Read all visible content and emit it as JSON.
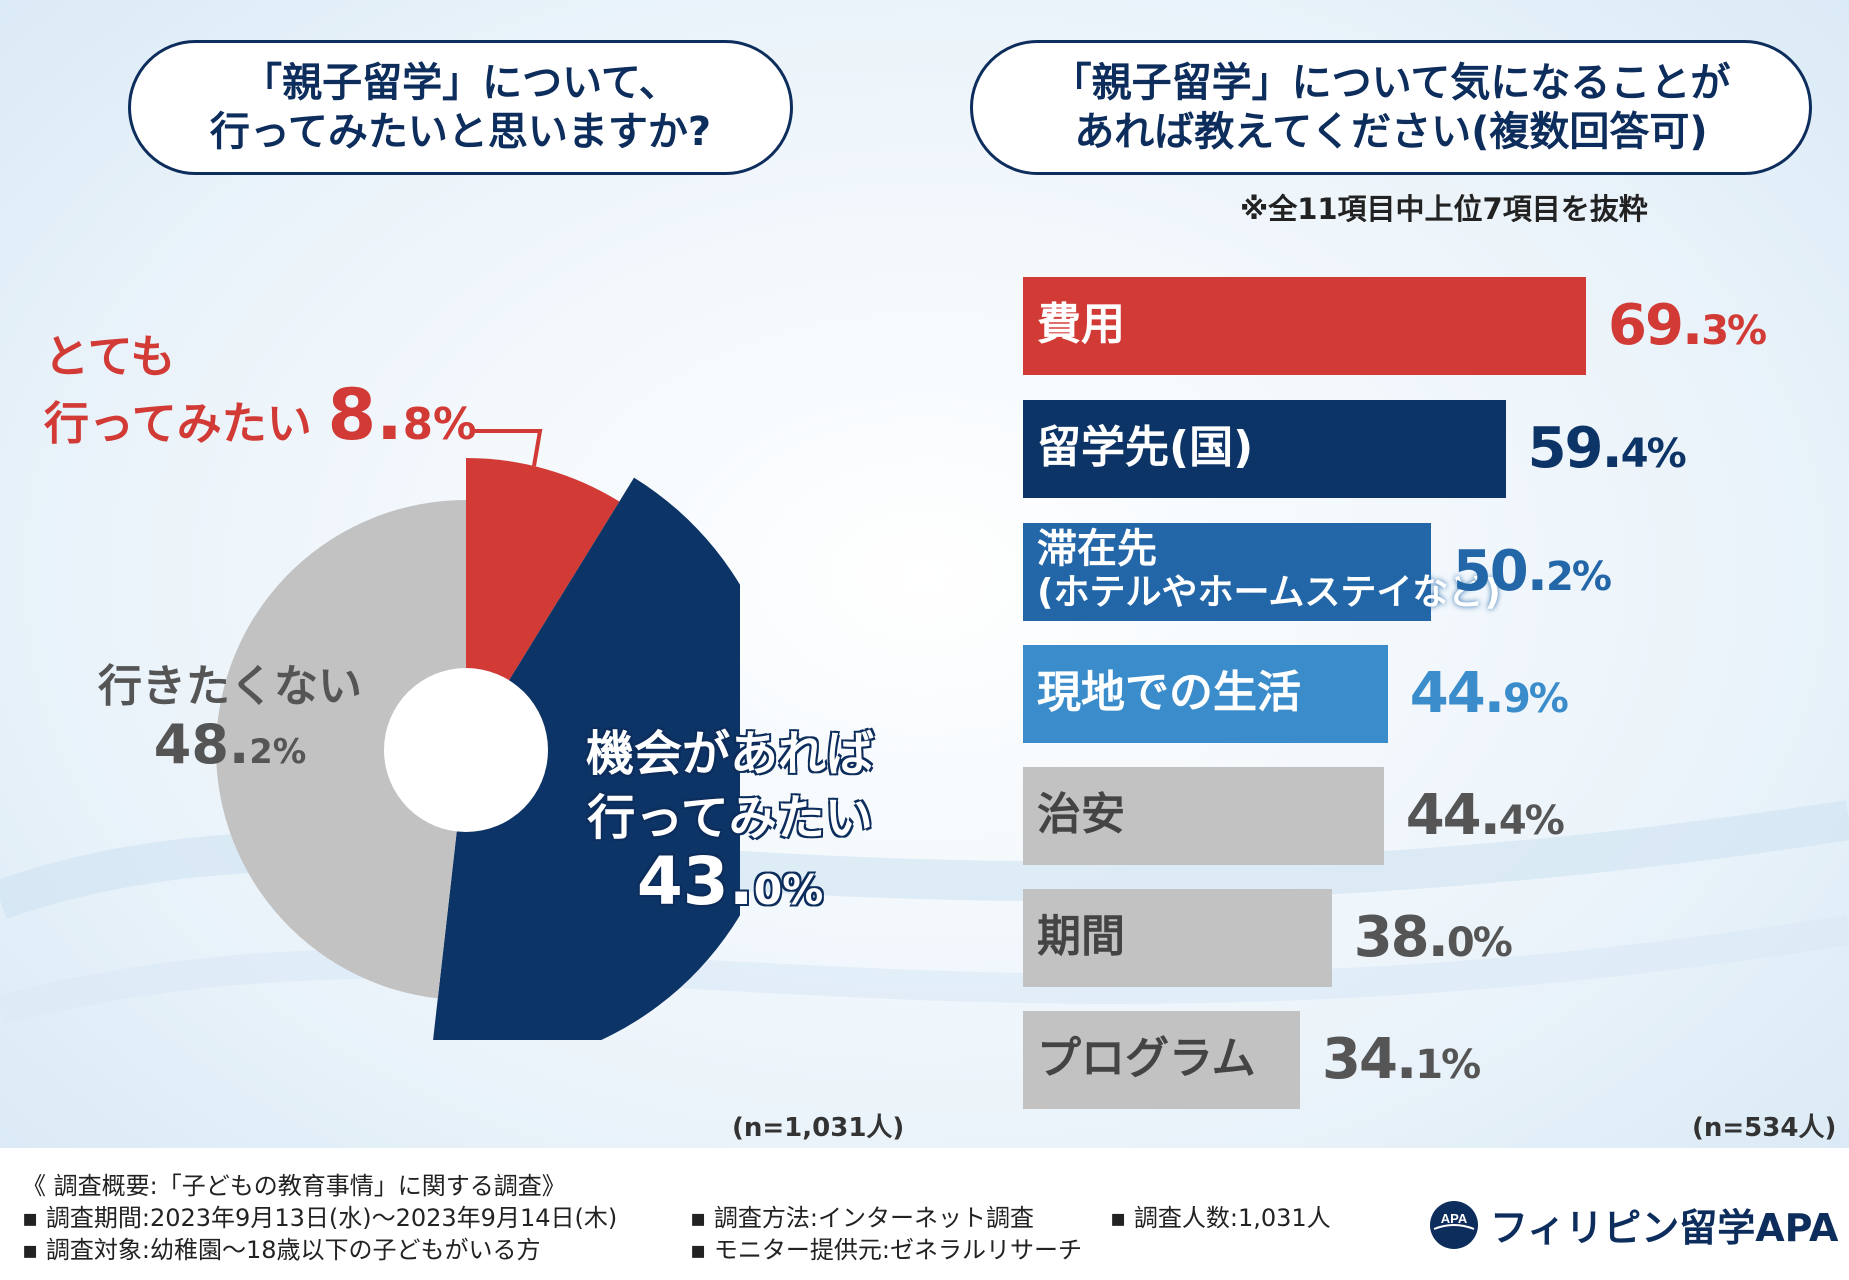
{
  "left_question": {
    "line1": "「親子留学」について、",
    "line2": "行ってみたいと思いますか?"
  },
  "right_question": {
    "line1": "「親子留学」について気になることが",
    "line2": "あれば教えてください(複数回答可)"
  },
  "right_note": "※全11項目中上位7項目を抜粋",
  "pie_labels": {
    "very": {
      "line1": "とても",
      "line2": "行ってみたい",
      "pct_int": "8.",
      "pct_dec": "8%"
    },
    "no": {
      "line1": "行きたくない",
      "pct_int": "48.",
      "pct_dec": "2%"
    },
    "chance": {
      "line1": "機会があれば",
      "line2": "行ってみたい",
      "pct_int": "43.",
      "pct_dec": "0%"
    }
  },
  "bar_labels": [
    {
      "label": "費用",
      "pct_int": "69.",
      "pct_dec": "3%"
    },
    {
      "label": "留学先(国)",
      "pct_int": "59.",
      "pct_dec": "4%"
    },
    {
      "label": "滞在先",
      "label2": "(ホテルやホームステイなど)",
      "pct_int": "50.",
      "pct_dec": "2%"
    },
    {
      "label": "現地での生活",
      "pct_int": "44.",
      "pct_dec": "9%"
    },
    {
      "label": "治安",
      "pct_int": "44.",
      "pct_dec": "4%"
    },
    {
      "label": "期間",
      "pct_int": "38.",
      "pct_dec": "0%"
    },
    {
      "label": "プログラム",
      "pct_int": "34.",
      "pct_dec": "1%"
    }
  ],
  "n_left": "(n=1,031人)",
  "n_right": "(n=534人)",
  "footer": {
    "summary": "《 調査概要:「子どもの教育事情」に関する調査》",
    "period": "▪ 調査期間:2023年9月13日(水)〜2023年9月14日(木)",
    "target": "▪ 調査対象:幼稚園〜18歳以下の子どもがいる方",
    "method": "▪ 調査方法:インターネット調査",
    "monitor": "▪ モニター提供元:ゼネラルリサーチ",
    "count": "▪ 調査人数:1,031人",
    "logo_text": "フィリピン留学APA",
    "logo_badge": "APA"
  },
  "colors": {
    "red": "#d13a35",
    "navy": "#0d3466",
    "blue": "#2367a8",
    "lightblue": "#3b8ccb",
    "gray": "#c2c2c2",
    "gray_text": "#555555"
  },
  "chart_data": [
    {
      "type": "pie",
      "title": "「親子留学」について、行ってみたいと思いますか?",
      "categories": [
        "とても行ってみたい",
        "機会があれば行ってみたい",
        "行きたくない"
      ],
      "values": [
        8.8,
        43.0,
        48.2
      ],
      "unit": "%",
      "n": "n=1,031人"
    },
    {
      "type": "bar",
      "orientation": "horizontal",
      "title": "「親子留学」について気になることがあれば教えてください(複数回答可)",
      "categories": [
        "費用",
        "留学先(国)",
        "滞在先(ホテルやホームステイなど)",
        "現地での生活",
        "治安",
        "期間",
        "プログラム"
      ],
      "values": [
        69.3,
        59.4,
        50.2,
        44.9,
        44.4,
        38.0,
        34.1
      ],
      "unit": "%",
      "n": "n=534人"
    }
  ]
}
